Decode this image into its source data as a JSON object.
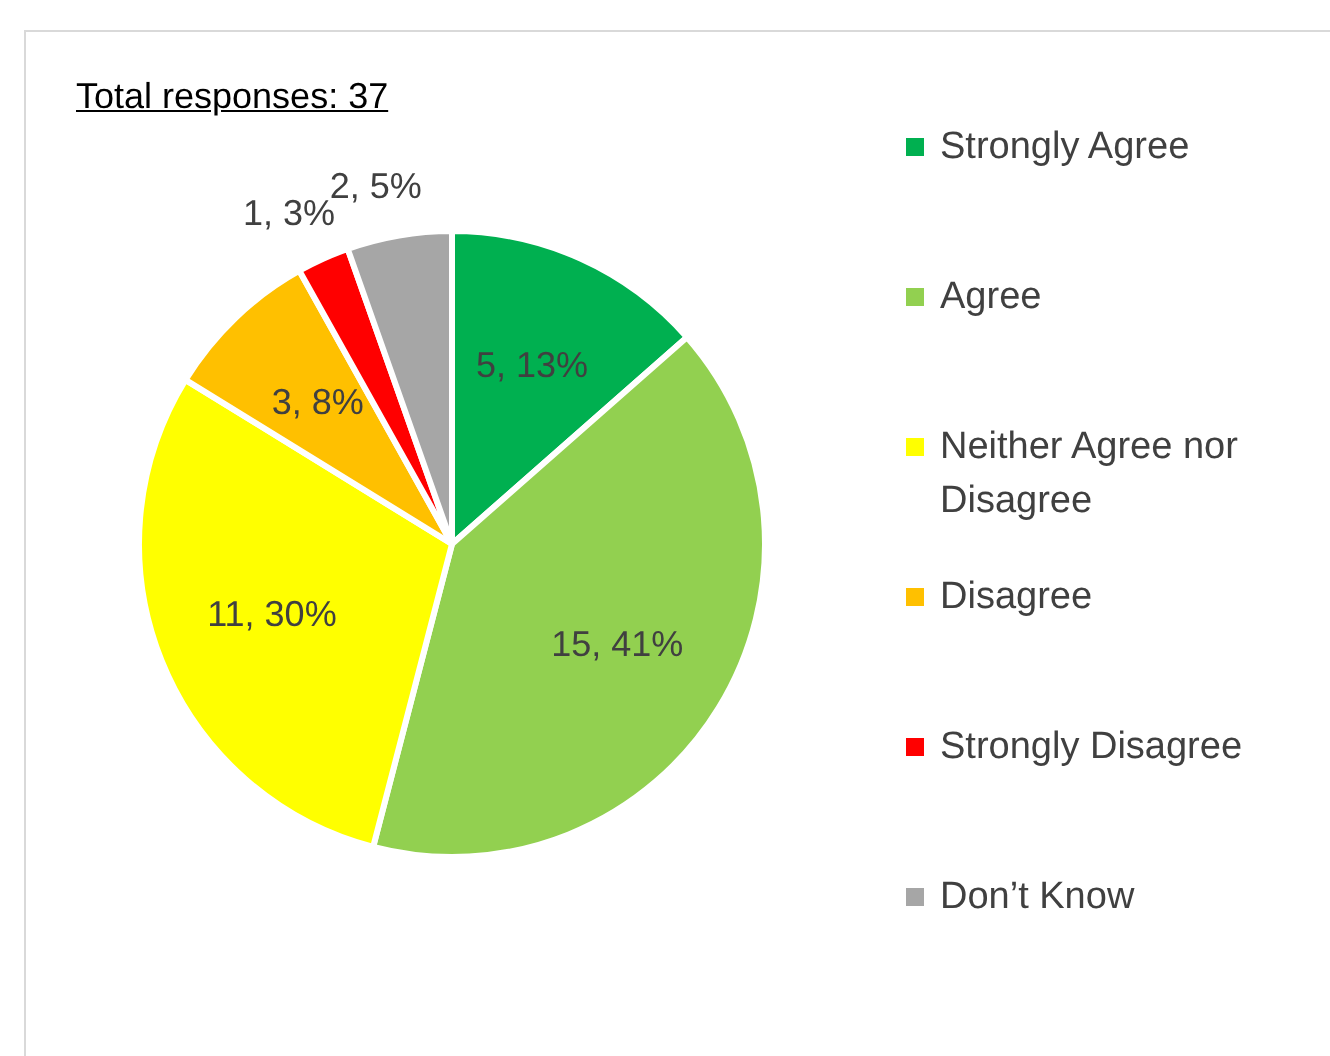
{
  "chart_data": {
    "type": "pie",
    "title": "Total responses: 37",
    "categories": [
      "Strongly Agree",
      "Agree",
      "Neither Agree nor Disagree",
      "Disagree",
      "Strongly Disagree",
      "Don’t Know"
    ],
    "values": [
      5,
      15,
      11,
      3,
      1,
      2
    ],
    "value_labels": [
      "5, 13%",
      "15, 41%",
      "11, 30%",
      "3, 8%",
      "1, 3%",
      "2, 5%"
    ],
    "colors": [
      "#00b050",
      "#92d050",
      "#ffff00",
      "#ffc000",
      "#ff0000",
      "#a6a6a6"
    ],
    "legend": "right"
  }
}
